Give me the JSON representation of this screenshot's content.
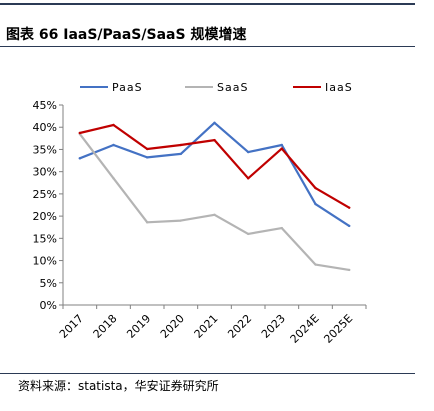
{
  "title": "图表 66 IaaS/PaaS/SaaS 规模增速",
  "source": "资料来源：statista，华安证券研究所",
  "chart_data": {
    "type": "line",
    "categories": [
      "2017",
      "2018",
      "2019",
      "2020",
      "2021",
      "2022",
      "2023",
      "2024E",
      "2025E"
    ],
    "ylim": [
      0,
      0.45
    ],
    "ytick_values": [
      0,
      0.05,
      0.1,
      0.15,
      0.2,
      0.25,
      0.3,
      0.35,
      0.4,
      0.45
    ],
    "ytick_labels": [
      "0%",
      "5%",
      "10%",
      "15%",
      "20%",
      "25%",
      "30%",
      "35%",
      "40%",
      "45%"
    ],
    "legend_position": "top",
    "grid": false,
    "series": [
      {
        "name": "PaaS",
        "color": "#4472c4",
        "values": [
          0.33,
          0.36,
          0.332,
          0.34,
          0.41,
          0.344,
          0.36,
          0.227,
          0.178
        ]
      },
      {
        "name": "SaaS",
        "color": "#b4b4b4",
        "values": [
          0.385,
          0.285,
          0.186,
          0.19,
          0.203,
          0.16,
          0.173,
          0.091,
          0.079
        ]
      },
      {
        "name": "IaaS",
        "color": "#c00000",
        "values": [
          0.387,
          0.405,
          0.351,
          0.36,
          0.371,
          0.285,
          0.352,
          0.263,
          0.219
        ]
      }
    ]
  }
}
